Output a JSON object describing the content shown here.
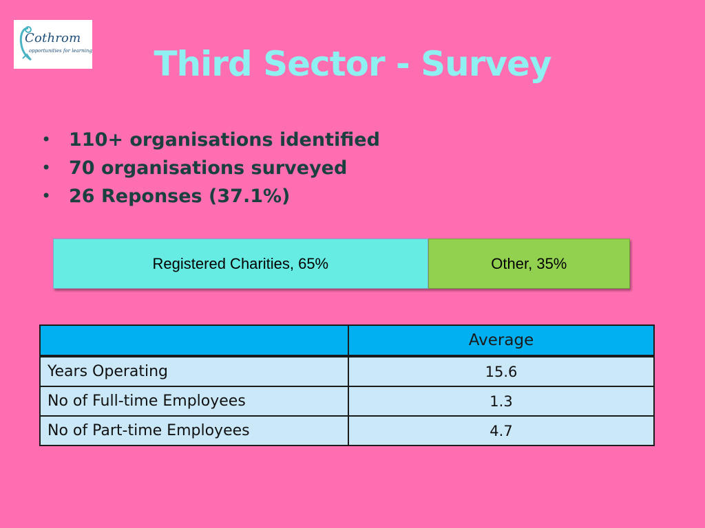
{
  "logo": {
    "name": "Cothrom",
    "tagline": "opportunities for learning"
  },
  "title": "Third Sector - Survey",
  "bullets": [
    "110+ organisations identified",
    "70 organisations surveyed",
    "26 Reponses (37.1%)"
  ],
  "chart_data": {
    "type": "bar",
    "orientation": "horizontal-stacked",
    "categories": [
      "Registered Charities",
      "Other"
    ],
    "values": [
      65,
      35
    ],
    "unit": "%",
    "labels": [
      "Registered Charities, 65%",
      "Other, 35%"
    ],
    "colors": [
      "#66ece2",
      "#92d050"
    ]
  },
  "table": {
    "header": [
      "",
      "Average"
    ],
    "rows": [
      {
        "label": "Years Operating",
        "value": "15.6"
      },
      {
        "label": "No of Full-time Employees",
        "value": "1.3"
      },
      {
        "label": "No of Part-time Employees",
        "value": "4.7"
      }
    ]
  },
  "colors": {
    "background": "#ff6eb0",
    "title": "#8ef0f0",
    "bullet_text": "#1b4040",
    "table_header": "#00b0f0",
    "table_cell": "#cbe8f8"
  }
}
